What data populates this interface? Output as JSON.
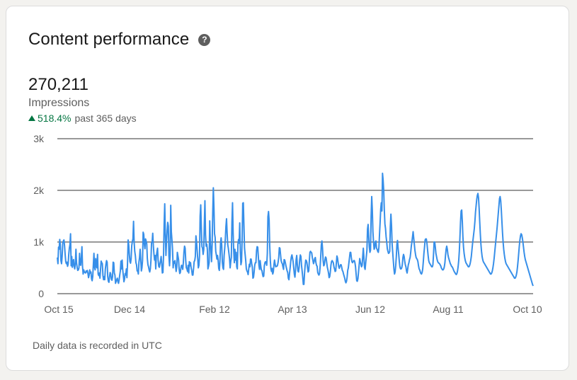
{
  "card": {
    "title": "Content performance",
    "help_glyph": "?",
    "metric_value": "270,211",
    "metric_label": "Impressions",
    "change_pct": "518.4%",
    "change_period": "past 365 days",
    "footnote": "Daily data is recorded in UTC"
  },
  "colors": {
    "line": "#378fe9",
    "positive": "#057642",
    "grid": "#333333"
  },
  "chart_data": {
    "type": "line",
    "title": "",
    "xlabel": "",
    "ylabel": "",
    "ylim": [
      0,
      3000
    ],
    "y_ticks": [
      "0",
      "1k",
      "2k",
      "3k"
    ],
    "y_tick_values": [
      0,
      1000,
      2000,
      3000
    ],
    "x_tick_labels": [
      "Oct 15",
      "Dec 14",
      "Feb 12",
      "Apr 13",
      "Jun 12",
      "Aug 11",
      "Oct 10"
    ],
    "grid": true,
    "series": [
      {
        "name": "",
        "values": [
          700,
          580,
          900,
          860,
          1050,
          940,
          640,
          580,
          720,
          980,
          1020,
          1040,
          930,
          760,
          620,
          580,
          610,
          530,
          570,
          760,
          880,
          950,
          1160,
          540,
          720,
          510,
          600,
          660,
          530,
          480,
          590,
          860,
          590,
          510,
          450,
          460,
          500,
          780,
          560,
          550,
          700,
          910,
          520,
          380,
          460,
          420,
          410,
          400,
          440,
          420,
          450,
          390,
          310,
          360,
          460,
          400,
          420,
          290,
          250,
          330,
          560,
          780,
          510,
          460,
          680,
          540,
          500,
          760,
          380,
          350,
          400,
          300,
          470,
          630,
          600,
          580,
          350,
          270,
          330,
          270,
          480,
          570,
          640,
          610,
          330,
          240,
          220,
          330,
          410,
          380,
          280,
          260,
          330,
          610,
          600,
          400,
          360,
          200,
          240,
          270,
          300,
          230,
          200,
          270,
          360,
          440,
          630,
          480,
          650,
          460,
          350,
          230,
          280,
          390,
          360,
          480,
          310,
          600,
          1040,
          940,
          760,
          620,
          590,
          680,
          930,
          1010,
          1060,
          1400,
          1000,
          820,
          740,
          600,
          560,
          440,
          440,
          380,
          610,
          700,
          860,
          670,
          440,
          500,
          640,
          1190,
          1150,
          960,
          870,
          1060,
          1020,
          970,
          680,
          560,
          520,
          460,
          420,
          480,
          640,
          980,
          1000,
          1170,
          930,
          770,
          650,
          740,
          480,
          720,
          810,
          880,
          650,
          530,
          510,
          580,
          640,
          720,
          580,
          400,
          410,
          730,
          1340,
          1740,
          1160,
          740,
          1020,
          1220,
          1380,
          1310,
          730,
          540,
          740,
          1710,
          1200,
          1040,
          860,
          500,
          620,
          590,
          640,
          540,
          430,
          510,
          800,
          730,
          660,
          480,
          390,
          410,
          500,
          550,
          540,
          470,
          600,
          800,
          920,
          880,
          640,
          500,
          480,
          430,
          550,
          400,
          620,
          540,
          600,
          500,
          450,
          360,
          360,
          480,
          620,
          640,
          720,
          1120,
          1010,
          840,
          680,
          500,
          550,
          730,
          1500,
          1720,
          1270,
          910,
          880,
          760,
          850,
          1350,
          1800,
          1150,
          920,
          960,
          860,
          480,
          530,
          600,
          1410,
          1000,
          820,
          620,
          950,
          1560,
          2050,
          1680,
          1160,
          1090,
          820,
          750,
          670,
          740,
          650,
          490,
          450,
          620,
          980,
          1080,
          940,
          610,
          500,
          470,
          740,
          880,
          1060,
          1300,
          1450,
          1170,
          950,
          880,
          780,
          680,
          500,
          620,
          700,
          1380,
          1760,
          1180,
          820,
          600,
          860,
          650,
          800,
          520,
          480,
          960,
          1050,
          980,
          1370,
          800,
          560,
          620,
          1040,
          1750,
          1760,
          1320,
          880,
          760,
          640,
          480,
          440,
          420,
          370,
          480,
          570,
          520,
          670,
          670,
          580,
          510,
          300,
          320,
          420,
          550,
          600,
          600,
          830,
          910,
          900,
          720,
          550,
          470,
          640,
          540,
          460,
          450,
          380,
          330,
          340,
          540,
          600,
          620,
          600,
          550,
          780,
          1490,
          1590,
          1420,
          920,
          640,
          480,
          430,
          490,
          380,
          420,
          560,
          650,
          570,
          520,
          530,
          530,
          550,
          610,
          700,
          890,
          880,
          760,
          640,
          600,
          580,
          520,
          470,
          660,
          650,
          600,
          540,
          490,
          440,
          410,
          300,
          270,
          390,
          500,
          620,
          710,
          750,
          690,
          620,
          500,
          380,
          320,
          450,
          660,
          740,
          560,
          440,
          420,
          510,
          660,
          750,
          720,
          550,
          440,
          320,
          180,
          180,
          390,
          540,
          650,
          640,
          600,
          500,
          420,
          440,
          630,
          800,
          820,
          800,
          790,
          700,
          640,
          580,
          620,
          680,
          700,
          600,
          550,
          530,
          410,
          380,
          360,
          390,
          520,
          720,
          940,
          1020,
          880,
          640,
          540,
          560,
          650,
          710,
          690,
          600,
          510,
          460,
          400,
          310,
          330,
          420,
          550,
          620,
          640,
          620,
          600,
          520,
          480,
          430,
          440,
          590,
          730,
          690,
          600,
          520,
          490,
          530,
          560,
          560,
          510,
          450,
          430,
          380,
          340,
          300,
          240,
          210,
          240,
          320,
          450,
          500,
          600,
          700,
          800,
          800,
          700,
          620,
          600,
          620,
          640,
          640,
          600,
          520,
          380,
          250,
          240,
          290,
          420,
          550,
          680,
          620,
          570,
          520,
          550,
          720,
          880,
          700,
          510,
          470,
          600,
          720,
          840,
          1250,
          1340,
          1100,
          900,
          800,
          840,
          1500,
          1880,
          1620,
          1200,
          1000,
          860,
          890,
          1000,
          1020,
          880,
          860,
          820,
          800,
          900,
          1150,
          1380,
          1640,
          1760,
          1600,
          2330,
          2200,
          2000,
          1620,
          1350,
          1260,
          1100,
          1000,
          870,
          820,
          780,
          790,
          820,
          1300,
          1540,
          1320,
          960,
          800,
          640,
          480,
          380,
          420,
          540,
          720,
          960,
          1030,
          880,
          760,
          620,
          520,
          480,
          480,
          500,
          560,
          700,
          760,
          720,
          630,
          560,
          520,
          440,
          400,
          480,
          560,
          600,
          660,
          700,
          800,
          920,
          1000,
          1100,
          1200,
          1080,
          960,
          840,
          760,
          700,
          680,
          660,
          620,
          540,
          480,
          460,
          420,
          390,
          380,
          410,
          480,
          620,
          780,
          900,
          1040,
          1060,
          1060,
          980,
          860,
          740,
          640,
          600,
          580,
          560,
          540,
          520,
          520,
          560,
          760,
          1000,
          1000,
          900,
          780,
          720,
          660,
          620,
          600,
          590,
          580,
          560,
          540,
          500,
          480,
          460,
          460,
          480,
          520,
          600,
          740,
          860,
          920,
          860,
          760,
          700,
          660,
          620,
          580,
          560,
          530,
          520,
          500,
          470,
          440,
          420,
          400,
          380,
          370,
          390,
          440,
          520,
          640,
          820,
          1080,
          1380,
          1600,
          1620,
          1400,
          1100,
          900,
          780,
          700,
          640,
          600,
          580,
          560,
          540,
          520,
          520,
          540,
          580,
          640,
          720,
          840,
          960,
          1060,
          1160,
          1260,
          1400,
          1580,
          1700,
          1820,
          1900,
          1940,
          1860,
          1660,
          1400,
          1160,
          960,
          820,
          720,
          660,
          620,
          600,
          580,
          560,
          540,
          520,
          500,
          480,
          460,
          440,
          420,
          400,
          380,
          380,
          400,
          440,
          500,
          580,
          680,
          800,
          920,
          1040,
          1160,
          1280,
          1420,
          1560,
          1700,
          1840,
          1880,
          1800,
          1620,
          1400,
          1180,
          1000,
          860,
          760,
          680,
          620,
          580,
          560,
          540,
          520,
          500,
          480,
          460,
          440,
          420,
          400,
          380,
          360,
          340,
          320,
          300,
          300,
          320,
          360,
          420,
          520,
          640,
          780,
          920,
          1040,
          1120,
          1160,
          1140,
          1080,
          1000,
          900,
          800,
          720,
          660,
          620,
          580,
          540,
          500,
          460,
          420,
          380,
          340,
          300,
          260,
          220,
          180,
          150
        ]
      }
    ]
  }
}
